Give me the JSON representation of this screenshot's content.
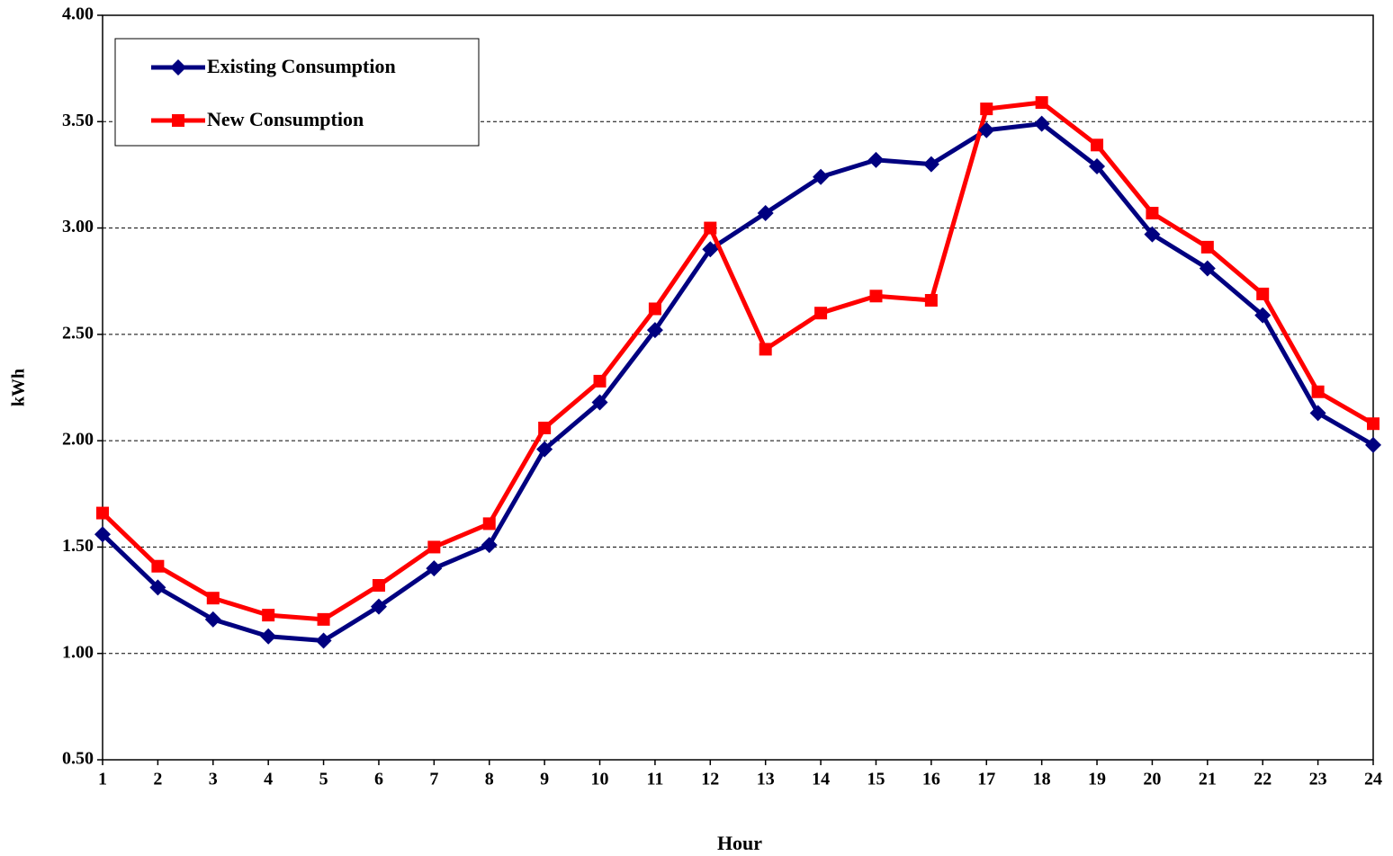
{
  "chart_data": {
    "type": "line",
    "x_label": "Hour",
    "y_label": "kWh",
    "categories": [
      "1",
      "2",
      "3",
      "4",
      "5",
      "6",
      "7",
      "8",
      "9",
      "10",
      "11",
      "12",
      "13",
      "14",
      "15",
      "16",
      "17",
      "18",
      "19",
      "20",
      "21",
      "22",
      "23",
      "24"
    ],
    "series": [
      {
        "name": "Existing Consumption",
        "color": "#000080",
        "marker": "diamond",
        "values": [
          1.56,
          1.31,
          1.16,
          1.08,
          1.06,
          1.22,
          1.4,
          1.51,
          1.96,
          2.18,
          2.52,
          2.9,
          3.07,
          3.24,
          3.32,
          3.3,
          3.46,
          3.49,
          3.29,
          2.97,
          2.81,
          2.59,
          2.13,
          1.98
        ]
      },
      {
        "name": "New Consumption",
        "color": "#ff0000",
        "marker": "square",
        "values": [
          1.66,
          1.41,
          1.26,
          1.18,
          1.16,
          1.32,
          1.5,
          1.61,
          2.06,
          2.28,
          2.62,
          3.0,
          2.43,
          2.6,
          2.68,
          2.66,
          3.56,
          3.59,
          3.39,
          3.07,
          2.91,
          2.69,
          2.23,
          2.08
        ]
      }
    ],
    "ylim": [
      0.5,
      4.0
    ],
    "yticks": [
      {
        "value": 0.5,
        "label": "0.50"
      },
      {
        "value": 1.0,
        "label": "1.00"
      },
      {
        "value": 1.5,
        "label": "1.50"
      },
      {
        "value": 2.0,
        "label": "2.00"
      },
      {
        "value": 2.5,
        "label": "2.50"
      },
      {
        "value": 3.0,
        "label": "3.00"
      },
      {
        "value": 3.5,
        "label": "3.50"
      },
      {
        "value": 4.0,
        "label": "4.00"
      }
    ],
    "grid": true,
    "legend": "upper-left"
  }
}
